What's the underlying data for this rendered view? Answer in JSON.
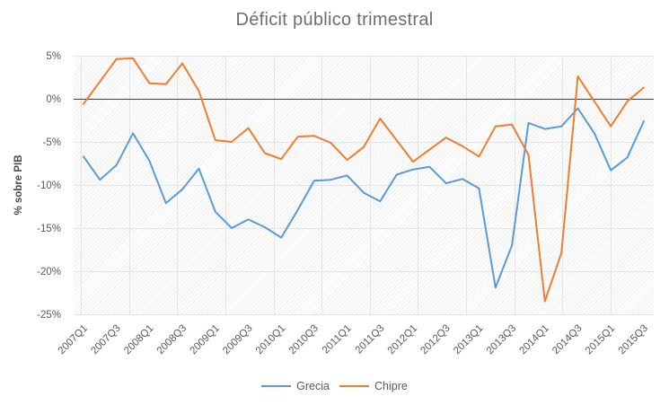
{
  "chart": {
    "title": "Déficit público trimestral",
    "y_axis_title": "% sobre PIB"
  },
  "chart_data": {
    "type": "line",
    "title": "Déficit público trimestral",
    "xlabel": "",
    "ylabel": "% sobre PIB",
    "ylim": [
      -25,
      5
    ],
    "grid": true,
    "zero_line": true,
    "legend_position": "bottom",
    "y_tick_labels": [
      "5%",
      "0%",
      "-5%",
      "-10%",
      "-15%",
      "-20%",
      "-25%"
    ],
    "y_tick_values": [
      5,
      0,
      -5,
      -10,
      -15,
      -20,
      -25
    ],
    "x_tick_labels": [
      "2007Q1",
      "2007Q3",
      "2008Q1",
      "2008Q3",
      "2009Q1",
      "2009Q3",
      "2010Q1",
      "2010Q3",
      "2011Q1",
      "2011Q3",
      "2012Q1",
      "2012Q3",
      "2013Q1",
      "2013Q3",
      "2014Q1",
      "2014Q3",
      "2015Q1",
      "2015Q3"
    ],
    "categories": [
      "2007Q1",
      "2007Q2",
      "2007Q3",
      "2007Q4",
      "2008Q1",
      "2008Q2",
      "2008Q3",
      "2008Q4",
      "2009Q1",
      "2009Q2",
      "2009Q3",
      "2009Q4",
      "2010Q1",
      "2010Q2",
      "2010Q3",
      "2010Q4",
      "2011Q1",
      "2011Q2",
      "2011Q3",
      "2011Q4",
      "2012Q1",
      "2012Q2",
      "2012Q3",
      "2012Q4",
      "2013Q1",
      "2013Q2",
      "2013Q3",
      "2013Q4",
      "2014Q1",
      "2014Q2",
      "2014Q3",
      "2014Q4",
      "2015Q1",
      "2015Q2",
      "2015Q3"
    ],
    "series": [
      {
        "name": "Grecia",
        "color": "#5B9BD5",
        "values": [
          -6.7,
          -9.4,
          -7.7,
          -4.0,
          -7.2,
          -12.1,
          -10.5,
          -8.1,
          -13.1,
          -15.0,
          -14.0,
          -14.9,
          -16.1,
          -12.9,
          -9.5,
          -9.4,
          -8.9,
          -10.9,
          -11.9,
          -8.8,
          -8.2,
          -7.9,
          -9.8,
          -9.3,
          -10.4,
          -21.9,
          -17.0,
          -2.8,
          -3.5,
          -3.2,
          -1.1,
          -4.0,
          -8.3,
          -6.8,
          -2.6
        ]
      },
      {
        "name": "Chipre",
        "color": "#ED7D31",
        "values": [
          -0.6,
          2.0,
          4.6,
          4.7,
          1.8,
          1.7,
          4.1,
          0.9,
          -4.8,
          -5.0,
          -3.4,
          -6.3,
          -7.0,
          -4.4,
          -4.3,
          -5.1,
          -7.1,
          -5.6,
          -2.3,
          -4.8,
          -7.3,
          -5.9,
          -4.5,
          -5.5,
          -6.7,
          -3.2,
          -3.0,
          -6.5,
          -23.5,
          -17.9,
          2.6,
          -0.3,
          -3.2,
          -0.3,
          1.3
        ]
      }
    ],
    "colors": {
      "grid": "#e4e4e4",
      "zero_line": "#3f3f3f",
      "text": "#595959"
    }
  }
}
